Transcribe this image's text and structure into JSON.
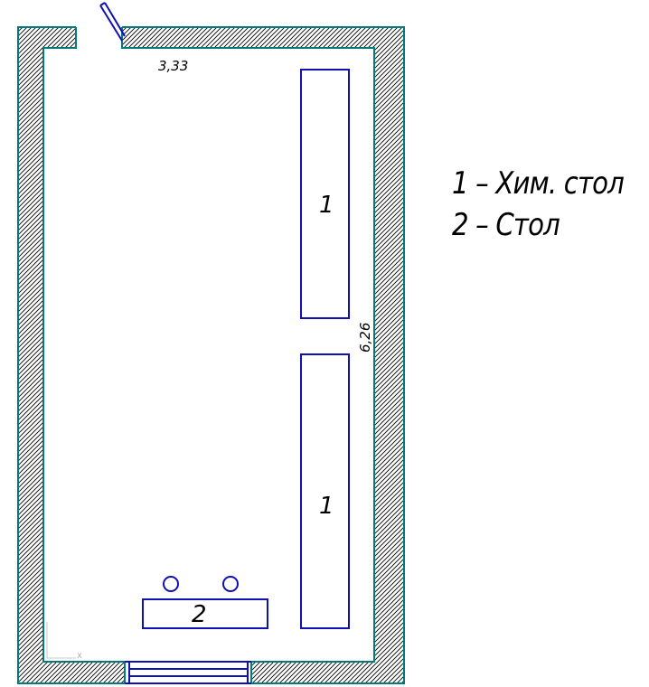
{
  "dimensions": {
    "width_label": "3,33",
    "length_label": "6,26"
  },
  "furniture": {
    "chem_table_top_label": "1",
    "chem_table_bottom_label": "1",
    "table_label": "2"
  },
  "axis_marker": {
    "x_label": "x"
  },
  "legend": {
    "line1": "1 – Хим. стол",
    "line2": "2 – Стол"
  },
  "colors": {
    "wall_outline": "#007a7a",
    "furniture": "#1010b0",
    "hatch": "#000000"
  }
}
